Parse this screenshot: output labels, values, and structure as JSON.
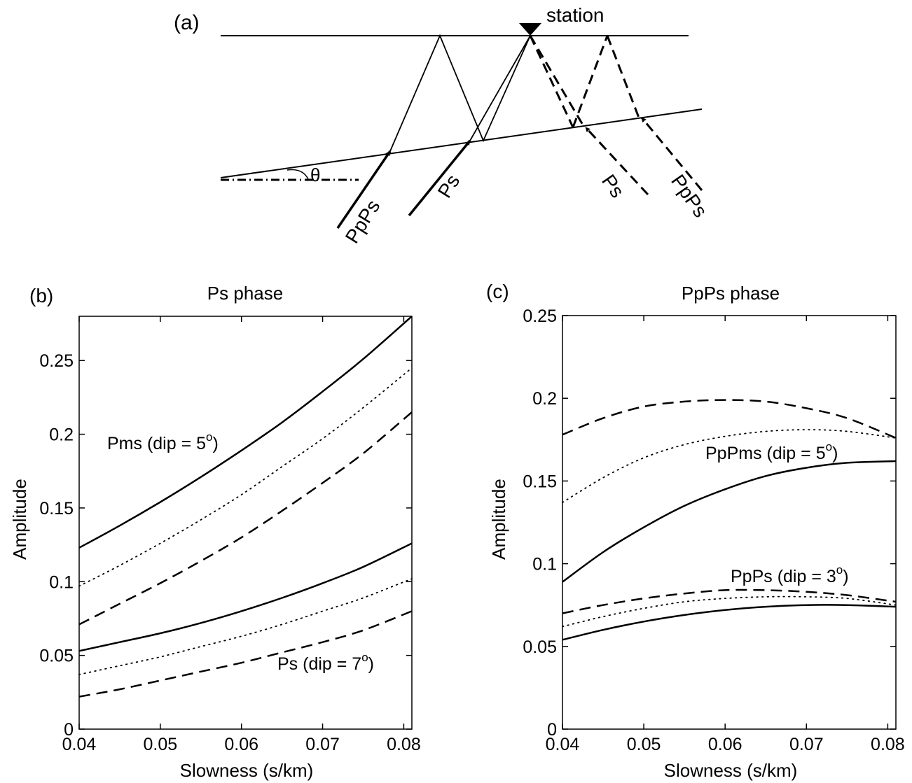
{
  "panel_a": {
    "label": "(a)",
    "station_label": "station",
    "angle_symbol": "θ",
    "ray_labels": [
      "PpPs",
      "Ps",
      "Ps",
      "PpPs"
    ]
  },
  "chart_data": [
    {
      "type": "line",
      "panel": "(b)",
      "title": "Ps phase",
      "xlabel": "Slowness (s/km)",
      "ylabel": "Amplitude",
      "xlim": [
        0.04,
        0.081
      ],
      "ylim": [
        0,
        0.28
      ],
      "xticks": [
        "0.04",
        "0.05",
        "0.06",
        "0.07",
        "0.08"
      ],
      "yticks": [
        "0",
        "0.05",
        "0.1",
        "0.15",
        "0.2",
        "0.25"
      ],
      "grid": false,
      "annotations": [
        {
          "base": "Pms (dip = 5",
          "sup": "o",
          "close": ")"
        },
        {
          "base": "Ps (dip = 7",
          "sup": "o",
          "close": ")"
        }
      ],
      "x": [
        0.04,
        0.045,
        0.05,
        0.055,
        0.06,
        0.065,
        0.07,
        0.075,
        0.081
      ],
      "series": [
        {
          "style": "solid",
          "values": [
            0.123,
            0.138,
            0.154,
            0.171,
            0.189,
            0.208,
            0.229,
            0.251,
            0.28
          ]
        },
        {
          "style": "dotted",
          "values": [
            0.097,
            0.111,
            0.126,
            0.142,
            0.159,
            0.178,
            0.197,
            0.218,
            0.245
          ]
        },
        {
          "style": "dashed",
          "values": [
            0.071,
            0.085,
            0.099,
            0.114,
            0.13,
            0.148,
            0.167,
            0.187,
            0.215
          ]
        },
        {
          "style": "solid",
          "values": [
            0.053,
            0.059,
            0.065,
            0.072,
            0.08,
            0.089,
            0.099,
            0.11,
            0.126
          ]
        },
        {
          "style": "dotted",
          "values": [
            0.037,
            0.043,
            0.049,
            0.056,
            0.063,
            0.071,
            0.08,
            0.089,
            0.102
          ]
        },
        {
          "style": "dashed",
          "values": [
            0.022,
            0.027,
            0.033,
            0.039,
            0.045,
            0.052,
            0.059,
            0.067,
            0.08
          ]
        }
      ]
    },
    {
      "type": "line",
      "panel": "(c)",
      "title": "PpPs phase",
      "xlabel": "Slowness (s/km)",
      "ylabel": "Amplitude",
      "xlim": [
        0.04,
        0.081
      ],
      "ylim": [
        0,
        0.25
      ],
      "xticks": [
        "0.04",
        "0.05",
        "0.06",
        "0.07",
        "0.08"
      ],
      "yticks": [
        "0",
        "0.05",
        "0.1",
        "0.15",
        "0.2",
        "0.25"
      ],
      "grid": false,
      "annotations": [
        {
          "base": "PpPms (dip = 5",
          "sup": "o",
          "close": ")"
        },
        {
          "base": "PpPs (dip = 3",
          "sup": "o",
          "close": ")"
        }
      ],
      "x": [
        0.04,
        0.045,
        0.05,
        0.055,
        0.06,
        0.065,
        0.07,
        0.075,
        0.081
      ],
      "series": [
        {
          "style": "dashed",
          "values": [
            0.178,
            0.188,
            0.195,
            0.198,
            0.199,
            0.198,
            0.194,
            0.188,
            0.176
          ]
        },
        {
          "style": "dotted",
          "values": [
            0.137,
            0.152,
            0.164,
            0.172,
            0.177,
            0.18,
            0.181,
            0.18,
            0.176
          ]
        },
        {
          "style": "solid",
          "values": [
            0.089,
            0.107,
            0.122,
            0.135,
            0.145,
            0.153,
            0.158,
            0.161,
            0.162
          ]
        },
        {
          "style": "dashed",
          "values": [
            0.07,
            0.075,
            0.079,
            0.082,
            0.084,
            0.084,
            0.083,
            0.081,
            0.077
          ]
        },
        {
          "style": "dotted",
          "values": [
            0.062,
            0.068,
            0.073,
            0.077,
            0.079,
            0.08,
            0.08,
            0.079,
            0.075
          ]
        },
        {
          "style": "solid",
          "values": [
            0.054,
            0.06,
            0.065,
            0.069,
            0.072,
            0.074,
            0.075,
            0.075,
            0.074
          ]
        }
      ]
    }
  ]
}
